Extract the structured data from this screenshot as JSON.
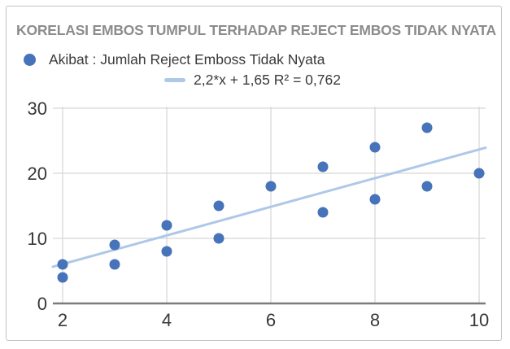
{
  "window": {
    "background": "#ffffff",
    "frame_border_color": "#c2c2c2"
  },
  "chart_data": {
    "type": "scatter",
    "title": "KORELASI EMBOS TUMPUL TERHADAP REJECT EMBOS TIDAK NYATA",
    "series": [
      {
        "name": "Akibat : Jumlah Reject Emboss Tidak Nyata",
        "color": "#4673b9",
        "points": [
          [
            2,
            4
          ],
          [
            2,
            6
          ],
          [
            3,
            6
          ],
          [
            3,
            9
          ],
          [
            4,
            8
          ],
          [
            4,
            12
          ],
          [
            5,
            10
          ],
          [
            5,
            15
          ],
          [
            6,
            18
          ],
          [
            7,
            14
          ],
          [
            7,
            21
          ],
          [
            8,
            16
          ],
          [
            8,
            24
          ],
          [
            9,
            18
          ],
          [
            9,
            27
          ],
          [
            10,
            20
          ]
        ]
      }
    ],
    "trendline": {
      "label": "2,2*x + 1,65 R² = 0,762",
      "slope": 2.2,
      "intercept": 1.65,
      "r_squared": 0.762,
      "color": "#aec8e9"
    },
    "x_ticks": [
      2,
      4,
      6,
      8,
      10
    ],
    "y_ticks": [
      0,
      10,
      20,
      30
    ],
    "xlim": [
      1.8125,
      10.125
    ],
    "ylim": [
      0,
      30.25
    ],
    "grid": true,
    "legend_position": "top-left",
    "xlabel": "",
    "ylabel": "",
    "colors": {
      "gridline": "#d6d6d6",
      "axis_line": "#7b7b7b",
      "title_text": "#8c8c8c",
      "tick_text": "#383838",
      "legend_text": "#3a3a3a"
    }
  }
}
